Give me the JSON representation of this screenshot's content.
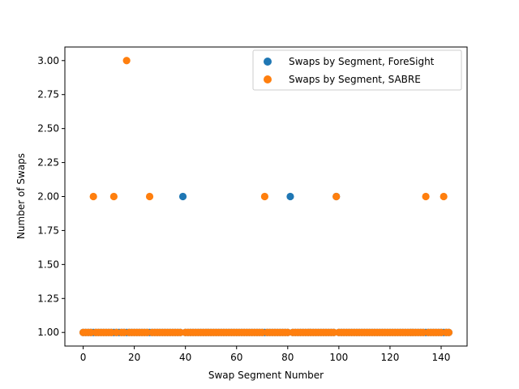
{
  "chart_data": {
    "type": "scatter",
    "title": "",
    "xlabel": "Swap Segment Number",
    "ylabel": "Number of Swaps",
    "xlim": [
      -7.15,
      150.15
    ],
    "ylim": [
      0.9,
      3.1
    ],
    "xticks": [
      0,
      20,
      40,
      60,
      80,
      100,
      120,
      140
    ],
    "xtick_labels": [
      "0",
      "20",
      "40",
      "60",
      "80",
      "100",
      "120",
      "140"
    ],
    "yticks": [
      1.0,
      1.25,
      1.5,
      1.75,
      2.0,
      2.25,
      2.5,
      2.75,
      3.0
    ],
    "ytick_labels": [
      "1.00",
      "1.25",
      "1.50",
      "1.75",
      "2.00",
      "2.25",
      "2.50",
      "2.75",
      "3.00"
    ],
    "grid": false,
    "legend_position": "top-right",
    "series": [
      {
        "name": "Swaps by Segment, ForeSight",
        "color": "#1f77b4",
        "x": [
          0,
          1,
          2,
          3,
          4,
          5,
          6,
          7,
          8,
          9,
          10,
          11,
          12,
          13,
          14,
          15,
          16,
          17,
          18,
          19,
          20,
          21,
          22,
          23,
          24,
          25,
          26,
          27,
          28,
          29,
          30,
          31,
          32,
          33,
          34,
          35,
          36,
          37,
          38,
          39,
          40,
          41,
          42,
          43,
          44,
          45,
          46,
          47,
          48,
          49,
          50,
          51,
          52,
          53,
          54,
          55,
          56,
          57,
          58,
          59,
          60,
          61,
          62,
          63,
          64,
          65,
          66,
          67,
          68,
          69,
          70,
          71,
          72,
          73,
          74,
          75,
          76,
          77,
          78,
          79,
          80,
          81,
          82,
          83,
          84,
          85,
          86,
          87,
          88,
          89,
          90,
          91,
          92,
          93,
          94,
          95,
          96,
          97,
          98,
          99,
          100,
          101,
          102,
          103,
          104,
          105,
          106,
          107,
          108,
          109,
          110,
          111,
          112,
          113,
          114,
          115,
          116,
          117,
          118,
          119,
          120,
          121,
          122,
          123,
          124,
          125,
          126,
          127,
          128,
          129,
          130,
          131,
          132,
          133,
          134,
          135,
          136,
          137,
          138,
          139,
          140,
          141,
          142,
          143
        ],
        "y": [
          1,
          1,
          1,
          1,
          1,
          1,
          1,
          1,
          1,
          1,
          1,
          1,
          1,
          1,
          1,
          1,
          1,
          1,
          1,
          1,
          1,
          1,
          1,
          1,
          1,
          1,
          1,
          1,
          1,
          1,
          1,
          1,
          1,
          1,
          1,
          1,
          1,
          1,
          1,
          2,
          1,
          1,
          1,
          1,
          1,
          1,
          1,
          1,
          1,
          1,
          1,
          1,
          1,
          1,
          1,
          1,
          1,
          1,
          1,
          1,
          1,
          1,
          1,
          1,
          1,
          1,
          1,
          1,
          1,
          1,
          1,
          1,
          1,
          1,
          1,
          1,
          1,
          1,
          1,
          1,
          1,
          2,
          1,
          1,
          1,
          1,
          1,
          1,
          1,
          1,
          1,
          1,
          1,
          1,
          1,
          1,
          1,
          1,
          1,
          2,
          1,
          1,
          1,
          1,
          1,
          1,
          1,
          1,
          1,
          1,
          1,
          1,
          1,
          1,
          1,
          1,
          1,
          1,
          1,
          1,
          1,
          1,
          1,
          1,
          1,
          1,
          1,
          1,
          1,
          1,
          1,
          1,
          1,
          1,
          1,
          1,
          1,
          1,
          1,
          1,
          1,
          1,
          1,
          1
        ]
      },
      {
        "name": "Swaps by Segment, SABRE",
        "color": "#ff7f0e",
        "x": [
          0,
          1,
          2,
          3,
          4,
          5,
          6,
          7,
          8,
          9,
          10,
          11,
          12,
          13,
          15,
          16,
          17,
          18,
          19,
          20,
          21,
          22,
          23,
          24,
          25,
          26,
          27,
          28,
          29,
          30,
          31,
          32,
          33,
          34,
          35,
          36,
          37,
          38,
          40,
          41,
          42,
          43,
          44,
          45,
          46,
          47,
          48,
          49,
          50,
          51,
          52,
          53,
          54,
          55,
          56,
          57,
          58,
          59,
          60,
          61,
          62,
          63,
          64,
          65,
          66,
          67,
          68,
          69,
          70,
          71,
          72,
          73,
          74,
          75,
          76,
          77,
          78,
          79,
          80,
          82,
          83,
          84,
          85,
          86,
          87,
          88,
          89,
          90,
          91,
          92,
          93,
          94,
          95,
          96,
          97,
          98,
          99,
          100,
          101,
          102,
          103,
          104,
          105,
          106,
          107,
          108,
          109,
          110,
          111,
          112,
          113,
          114,
          115,
          116,
          117,
          118,
          119,
          120,
          121,
          122,
          123,
          124,
          125,
          126,
          127,
          128,
          129,
          130,
          131,
          132,
          133,
          134,
          135,
          136,
          137,
          138,
          139,
          140,
          141,
          142,
          143
        ],
        "y": [
          1,
          1,
          1,
          1,
          2,
          1,
          1,
          1,
          1,
          1,
          1,
          1,
          2,
          1,
          1,
          1,
          3,
          1,
          1,
          1,
          1,
          1,
          1,
          1,
          1,
          2,
          1,
          1,
          1,
          1,
          1,
          1,
          1,
          1,
          1,
          1,
          1,
          1,
          1,
          1,
          1,
          1,
          1,
          1,
          1,
          1,
          1,
          1,
          1,
          1,
          1,
          1,
          1,
          1,
          1,
          1,
          1,
          1,
          1,
          1,
          1,
          1,
          1,
          1,
          1,
          1,
          1,
          1,
          1,
          2,
          1,
          1,
          1,
          1,
          1,
          1,
          1,
          1,
          1,
          1,
          1,
          1,
          1,
          1,
          1,
          1,
          1,
          1,
          1,
          1,
          1,
          1,
          1,
          1,
          1,
          1,
          2,
          1,
          1,
          1,
          1,
          1,
          1,
          1,
          1,
          1,
          1,
          1,
          1,
          1,
          1,
          1,
          1,
          1,
          1,
          1,
          1,
          1,
          1,
          1,
          1,
          1,
          1,
          1,
          1,
          1,
          1,
          1,
          1,
          1,
          1,
          2,
          1,
          1,
          1,
          1,
          1,
          1,
          2,
          1,
          1
        ]
      }
    ]
  }
}
